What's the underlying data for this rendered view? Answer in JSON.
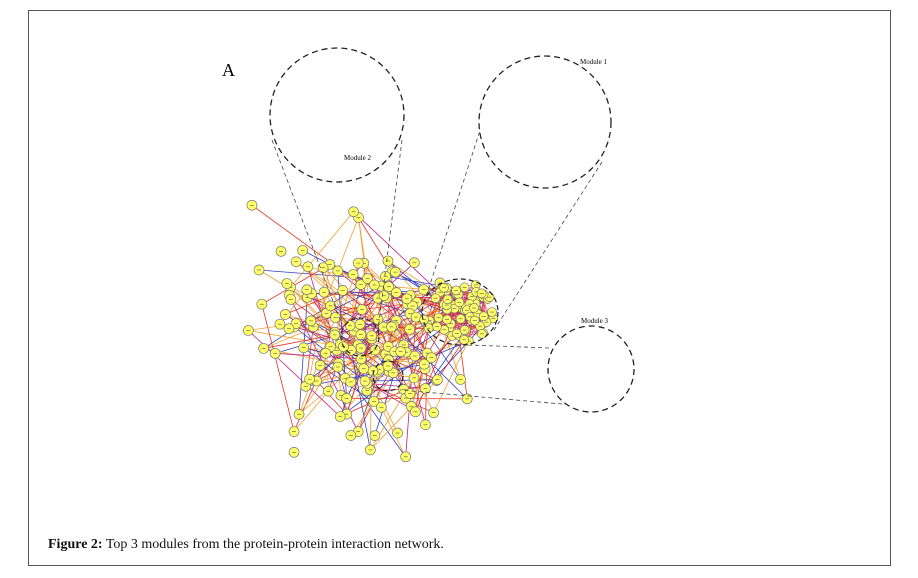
{
  "panel_label": "A",
  "modules": [
    {
      "label": "Module 1"
    },
    {
      "label": "Module 2"
    },
    {
      "label": "Module 3"
    }
  ],
  "caption": {
    "label": "Figure 2:",
    "text": "Top 3 modules from the protein-protein interaction network."
  }
}
